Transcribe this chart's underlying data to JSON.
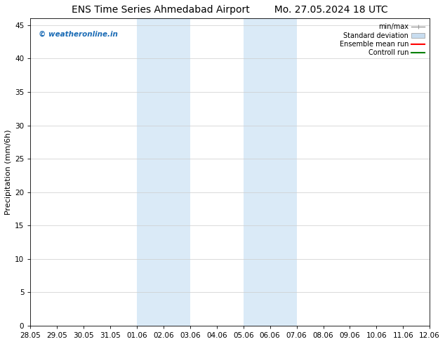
{
  "title_left": "ENS Time Series Ahmedabad Airport",
  "title_right": "Mo. 27.05.2024 18 UTC",
  "ylabel": "Precipitation (mm/6h)",
  "xlabel_ticks": [
    "28.05",
    "29.05",
    "30.05",
    "31.05",
    "01.06",
    "02.06",
    "03.06",
    "04.06",
    "05.06",
    "06.06",
    "07.06",
    "08.06",
    "09.06",
    "10.06",
    "11.06",
    "12.06"
  ],
  "xlim": [
    0,
    15
  ],
  "ylim": [
    0,
    46
  ],
  "yticks": [
    0,
    5,
    10,
    15,
    20,
    25,
    30,
    35,
    40,
    45
  ],
  "shaded_regions": [
    {
      "xstart": 4,
      "xend": 6,
      "color": "#daeaf7"
    },
    {
      "xstart": 8,
      "xend": 10,
      "color": "#daeaf7"
    }
  ],
  "watermark_text": "© weatheronline.in",
  "watermark_color": "#1a6bb5",
  "legend_entries": [
    {
      "label": "min/max",
      "color": "#aaaaaa",
      "style": "minmax"
    },
    {
      "label": "Standard deviation",
      "color": "#c8ddf0",
      "style": "band"
    },
    {
      "label": "Ensemble mean run",
      "color": "#ff0000",
      "style": "line"
    },
    {
      "label": "Controll run",
      "color": "#008000",
      "style": "line"
    }
  ],
  "background_color": "#ffffff",
  "font_size": 7.5,
  "title_font_size": 10
}
